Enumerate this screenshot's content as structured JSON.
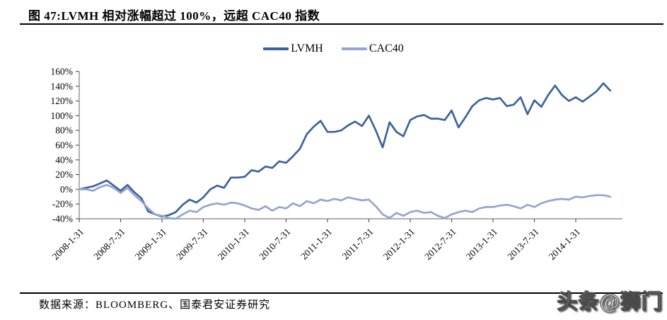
{
  "figure": {
    "title": "图 47:LVMH 相对涨幅超过 100%，远超 CAC40 指数",
    "source": "数据来源：BLOOMBERG、国泰君安证券研究",
    "watermark": "头条@狮门"
  },
  "colors": {
    "lvmh_line": "#3d639d",
    "cac40_line": "#96a5cf",
    "axis": "#7f7f7f",
    "tick": "#595959",
    "text": "#000000",
    "rule": "#000000"
  },
  "chart_data": {
    "type": "line",
    "title": "",
    "xlabel": "",
    "ylabel": "",
    "grid": false,
    "legend_position": "top-center",
    "ylim": [
      -40,
      160
    ],
    "y_tick_step": 20,
    "y_tick_labels": [
      "160%",
      "140%",
      "120%",
      "100%",
      "80%",
      "60%",
      "40%",
      "20%",
      "0%",
      "-20%",
      "-40%"
    ],
    "x_tick_interval": 6,
    "x_labels": [
      "2008-1-31",
      "2008-7-31",
      "2009-1-31",
      "2009-7-31",
      "2010-1-31",
      "2010-7-31",
      "2011-1-31",
      "2011-7-31",
      "2012-1-31",
      "2012-7-31",
      "2013-1-31",
      "2013-7-31",
      "2014-1-31"
    ],
    "x_start_month": "2008-01",
    "x_frequency": "monthly",
    "unit": "percent",
    "series": [
      {
        "name": "LVMH",
        "color": "#3d639d",
        "values": [
          0,
          2,
          4,
          8,
          12,
          5,
          -2,
          6,
          -4,
          -12,
          -30,
          -34,
          -37,
          -35,
          -31,
          -21,
          -14,
          -18,
          -11,
          0,
          5,
          2,
          16,
          16,
          17,
          26,
          24,
          31,
          29,
          38,
          36,
          45,
          55,
          75,
          85,
          93,
          78,
          78,
          80,
          87,
          92,
          86,
          100,
          80,
          57,
          91,
          78,
          72,
          94,
          99,
          101,
          96,
          96,
          94,
          107,
          84,
          98,
          113,
          121,
          124,
          122,
          124,
          113,
          115,
          125,
          102,
          121,
          112,
          128,
          141,
          128,
          120,
          125,
          119,
          126,
          133,
          144,
          134
        ]
      },
      {
        "name": "CAC40",
        "color": "#96a5cf",
        "values": [
          0,
          0,
          -2,
          3,
          6,
          2,
          -5,
          2,
          -8,
          -16,
          -26,
          -34,
          -36,
          -39,
          -40,
          -34,
          -29,
          -31,
          -24,
          -21,
          -19,
          -21,
          -18,
          -19,
          -22,
          -26,
          -28,
          -23,
          -29,
          -24,
          -26,
          -19,
          -23,
          -16,
          -19,
          -14,
          -16,
          -13,
          -15,
          -11,
          -13,
          -15,
          -14,
          -23,
          -34,
          -39,
          -32,
          -36,
          -31,
          -29,
          -32,
          -31,
          -36,
          -39,
          -34,
          -31,
          -29,
          -31,
          -26,
          -24,
          -24,
          -22,
          -21,
          -23,
          -26,
          -21,
          -24,
          -19,
          -16,
          -14,
          -13,
          -14,
          -10,
          -11,
          -9,
          -8,
          -8,
          -10
        ]
      }
    ]
  }
}
